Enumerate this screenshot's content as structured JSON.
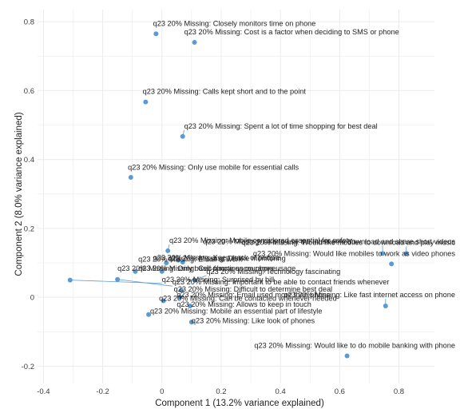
{
  "chart_data": {
    "type": "scatter",
    "title": "",
    "xlabel": "Component 1 (13.2% variance explained)",
    "ylabel": "Component 2 (8.0% variance explained)",
    "xlim": [
      -0.42,
      0.92
    ],
    "ylim": [
      -0.25,
      0.835
    ],
    "x_ticks": [
      -0.4,
      -0.2,
      0,
      0.2,
      0.4,
      0.6,
      0.8
    ],
    "x_tick_labels": [
      "-0.4",
      "-0.2",
      "0",
      "0.2",
      "0.4",
      "0.6",
      "0.8"
    ],
    "y_ticks": [
      -0.2,
      0,
      0.2,
      0.4,
      0.6,
      0.8
    ],
    "y_tick_labels": [
      "-0.2",
      "0",
      "0.2",
      "0.4",
      "0.6",
      "0.8"
    ],
    "grid": true,
    "colors": {
      "point": "#5b9bd5",
      "leader": "#5b9bd5",
      "grid": "#ebebeb",
      "background": "#ffffff"
    },
    "points": [
      {
        "label": "q23 20% Missing: Closely monitors time on phone",
        "x": -0.02,
        "y": 0.765,
        "lx": -0.03,
        "ly": 0.787
      },
      {
        "label": "q23 20% Missing: Cost is a factor when deciding to SMS or phone",
        "x": 0.11,
        "y": 0.74,
        "lx": 0.075,
        "ly": 0.763
      },
      {
        "label": "q23 20% Missing: Calls kept short and to the point",
        "x": -0.055,
        "y": 0.567,
        "lx": -0.065,
        "ly": 0.59
      },
      {
        "label": "q23 20% Missing: Spent a lot of time shopping for best deal",
        "x": 0.07,
        "y": 0.467,
        "lx": 0.075,
        "ly": 0.49
      },
      {
        "label": "q23 20% Missing: Only use mobile for essential calls",
        "x": -0.105,
        "y": 0.348,
        "lx": -0.115,
        "ly": 0.37
      },
      {
        "label": "q23 20% Missing: Mobile considered essential for safety",
        "x": 0.02,
        "y": 0.135,
        "lx": 0.025,
        "ly": 0.158
      },
      {
        "label": "q23 20% Missing: Like to use the internet to download and share short videos",
        "x": 0.745,
        "y": 0.127,
        "lx": 0.49,
        "ly": 0.155
      },
      {
        "label": "q23 20% Missing: Would like mobiles to download and play music",
        "x": 0.825,
        "y": 0.127,
        "lx": 0.6,
        "ly": 0.152
      },
      {
        "label": "q23 20% Missing: Would like mobiles to work as video phones",
        "x": 0.775,
        "y": 0.097,
        "lx": 0.7,
        "ly": 0.12
      },
      {
        "label": "q23 20% Missing: Keep track of people",
        "x": 0.055,
        "y": 0.108,
        "lx": -0.03,
        "ly": 0.108
      },
      {
        "label": "q23 20% Missing: Email at work",
        "x": 0.015,
        "y": 0.1,
        "lx": -0.08,
        "ly": 0.104
      },
      {
        "label": "q23 20% Missing: Dislike monitoring",
        "x": 0.07,
        "y": 0.102,
        "lx": 0.02,
        "ly": 0.106
      },
      {
        "label": "q23 20% Missing: Only basic functions on phone",
        "x": -0.09,
        "y": 0.075,
        "lx": -0.15,
        "ly": 0.077
      },
      {
        "label": "q23 20% Missing: Cell phone encourages usage",
        "x": 0.0,
        "y": 0.075,
        "lx": -0.08,
        "ly": 0.077
      },
      {
        "label": "q23 20% Missing: Technology fascinating",
        "x": 0.11,
        "y": 0.05,
        "lx": 0.15,
        "ly": 0.068
      },
      {
        "label": "q23 20% Missing: Surprised by bill",
        "x": -0.31,
        "y": 0.05,
        "lx": 0.0,
        "ly": 0.045
      },
      {
        "label": "q23 20% Missing: Important to be able to contact friends whenever",
        "x": -0.15,
        "y": 0.052,
        "lx": 0.035,
        "ly": 0.037
      },
      {
        "label": "q23 20% Missing: Difficult to determine best deal",
        "x": 0.065,
        "y": 0.02,
        "lx": 0.04,
        "ly": 0.017
      },
      {
        "label": "q23 20% Missing: Email used more than phone",
        "x": 0.06,
        "y": 0.0,
        "lx": 0.05,
        "ly": 0.0
      },
      {
        "label": "q23 20% Missing: Like fast internet access on phone",
        "x": 0.755,
        "y": -0.025,
        "lx": 0.59,
        "ly": 0.0
      },
      {
        "label": "q23 20% Missing: Can be contacted whenever needed",
        "x": 0.005,
        "y": -0.01,
        "lx": -0.01,
        "ly": -0.01
      },
      {
        "label": "q23 20% Missing: Allows to keep in touch",
        "x": 0.095,
        "y": -0.025,
        "lx": 0.05,
        "ly": -0.027
      },
      {
        "label": "q23 20% Missing: Mobile an essential part of lifestyle",
        "x": -0.045,
        "y": -0.05,
        "lx": -0.04,
        "ly": -0.047
      },
      {
        "label": "q23 20% Missing: Like look of phones",
        "x": 0.1,
        "y": -0.072,
        "lx": 0.1,
        "ly": -0.075
      },
      {
        "label": "q23 20% Missing: Would like to do mobile banking with phone",
        "x": 0.625,
        "y": -0.17,
        "lx": 0.33,
        "ly": -0.147
      }
    ]
  }
}
